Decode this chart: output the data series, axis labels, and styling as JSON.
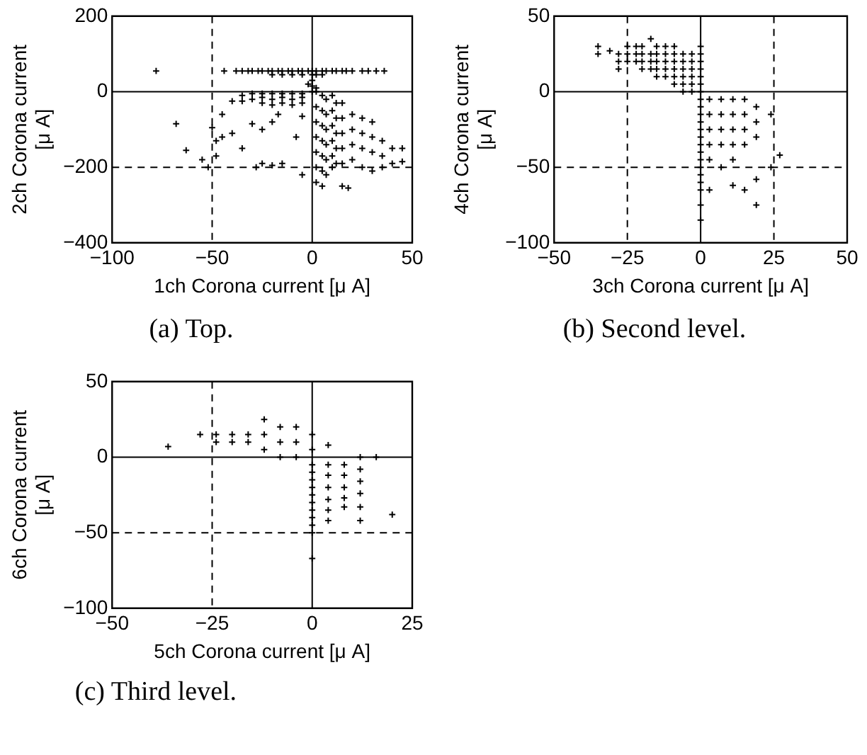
{
  "chart_data": [
    {
      "type": "scatter",
      "title": "(a) Top.",
      "xlabel": "1ch Corona current [μ A]",
      "ylabel": "2ch Corona current\n[μ A]",
      "color": "#000000",
      "marker": "cross",
      "xlim": [
        -100,
        50
      ],
      "ylim": [
        -400,
        200
      ],
      "xticks": [
        -100,
        -50,
        0,
        50
      ],
      "yticks": [
        -400,
        -200,
        0,
        200
      ],
      "ref_lines": [
        {
          "axis": "x",
          "value": 0,
          "line_style": "solid"
        },
        {
          "axis": "y",
          "value": 0,
          "line_style": "solid"
        },
        {
          "axis": "x",
          "value": -50,
          "line_style": "dashed"
        },
        {
          "axis": "y",
          "value": -200,
          "line_style": "dashed"
        }
      ],
      "x": [
        -78,
        -44,
        -38,
        -35,
        -32,
        -30,
        -27,
        -25,
        -22,
        -20,
        -17,
        -15,
        -12,
        -10,
        -7,
        -5,
        -2,
        0,
        2,
        5,
        7,
        10,
        12,
        15,
        17,
        20,
        25,
        28,
        32,
        36,
        -20,
        -15,
        -10,
        -5,
        0,
        2,
        5,
        0,
        0,
        0,
        -2,
        2,
        -35,
        -35,
        -30,
        -30,
        -25,
        -25,
        -25,
        -20,
        -20,
        -20,
        -15,
        -15,
        -15,
        -10,
        -10,
        -10,
        -5,
        -5,
        -5,
        -40,
        2,
        2,
        2,
        2,
        2,
        2,
        2,
        5,
        5,
        5,
        5,
        5,
        5,
        5,
        7,
        7,
        7,
        7,
        7,
        7,
        10,
        10,
        10,
        10,
        10,
        10,
        12,
        12,
        12,
        12,
        12,
        15,
        15,
        15,
        15,
        15,
        15,
        20,
        20,
        20,
        20,
        25,
        25,
        25,
        25,
        30,
        30,
        30,
        30,
        35,
        35,
        35,
        40,
        40,
        45,
        45,
        -68,
        -63,
        -55,
        -52,
        -50,
        -48,
        -48,
        -45,
        -45,
        -40,
        -35,
        -30,
        -28,
        -25,
        -20,
        -17,
        -20,
        -15,
        -8,
        -5,
        -5,
        -25,
        18
      ],
      "values": [
        55,
        55,
        55,
        55,
        55,
        55,
        55,
        55,
        55,
        55,
        55,
        55,
        55,
        55,
        55,
        55,
        55,
        55,
        55,
        55,
        55,
        55,
        55,
        55,
        55,
        55,
        55,
        55,
        55,
        55,
        45,
        45,
        45,
        45,
        45,
        45,
        45,
        30,
        15,
        0,
        20,
        10,
        -10,
        -25,
        -5,
        -20,
        -5,
        -15,
        -30,
        -5,
        -20,
        -35,
        -5,
        -15,
        -30,
        -5,
        -20,
        -35,
        -5,
        -15,
        -30,
        -25,
        0,
        -40,
        -80,
        -120,
        -160,
        -200,
        -240,
        -10,
        -50,
        -90,
        -130,
        -170,
        -210,
        -250,
        -20,
        -60,
        -100,
        -140,
        -180,
        -220,
        -10,
        -50,
        -90,
        -130,
        -170,
        -200,
        -30,
        -70,
        -110,
        -150,
        -190,
        -30,
        -70,
        -110,
        -150,
        -190,
        -250,
        -60,
        -100,
        -140,
        -180,
        -70,
        -110,
        -150,
        -200,
        -80,
        -120,
        -160,
        -210,
        -130,
        -170,
        -200,
        -150,
        -190,
        -150,
        -185,
        -85,
        -155,
        -180,
        -200,
        -95,
        -130,
        -170,
        -60,
        -120,
        -110,
        -150,
        -85,
        -200,
        -100,
        -80,
        -60,
        -195,
        -190,
        -120,
        -220,
        -65,
        -190,
        -255
      ]
    },
    {
      "type": "scatter",
      "title": "(b) Second level.",
      "xlabel": "3ch Corona current [μ A]",
      "ylabel": "4ch Corona current\n[μ A]",
      "color": "#000000",
      "marker": "cross",
      "xlim": [
        -50,
        50
      ],
      "ylim": [
        -100,
        50
      ],
      "xticks": [
        -50,
        -25,
        0,
        25,
        50
      ],
      "yticks": [
        -100,
        -50,
        0,
        50
      ],
      "ref_lines": [
        {
          "axis": "x",
          "value": 0,
          "line_style": "solid"
        },
        {
          "axis": "y",
          "value": 0,
          "line_style": "solid"
        },
        {
          "axis": "x",
          "value": -25,
          "line_style": "dashed"
        },
        {
          "axis": "x",
          "value": 25,
          "line_style": "dashed"
        },
        {
          "axis": "y",
          "value": -50,
          "line_style": "dashed"
        }
      ],
      "x": [
        -35,
        -35,
        -31,
        -28,
        -28,
        -28,
        -25,
        -25,
        -25,
        -22,
        -22,
        -22,
        -20,
        -20,
        -20,
        -20,
        -17,
        -17,
        -17,
        -17,
        -15,
        -15,
        -15,
        -15,
        -15,
        -12,
        -12,
        -12,
        -12,
        -12,
        -9,
        -9,
        -9,
        -9,
        -9,
        -9,
        -6,
        -6,
        -6,
        -6,
        -6,
        -6,
        -3,
        -3,
        -3,
        -3,
        -3,
        -3,
        0,
        0,
        0,
        0,
        0,
        0,
        0,
        0,
        0,
        0,
        0,
        0,
        0,
        0,
        0,
        0,
        0,
        0,
        0,
        0,
        0,
        0,
        3,
        3,
        3,
        3,
        3,
        3,
        7,
        7,
        7,
        7,
        7,
        11,
        11,
        11,
        11,
        11,
        11,
        15,
        15,
        15,
        15,
        15,
        19,
        19,
        19,
        19,
        19,
        24,
        24,
        27
      ],
      "values": [
        25,
        30,
        27,
        15,
        20,
        25,
        20,
        25,
        30,
        20,
        25,
        30,
        15,
        20,
        25,
        30,
        15,
        20,
        25,
        35,
        10,
        15,
        20,
        25,
        30,
        10,
        15,
        20,
        25,
        30,
        5,
        10,
        15,
        20,
        25,
        30,
        0,
        5,
        10,
        15,
        20,
        25,
        0,
        5,
        10,
        15,
        20,
        25,
        0,
        5,
        10,
        15,
        20,
        25,
        30,
        -5,
        -10,
        -15,
        -20,
        -25,
        -30,
        -35,
        -40,
        -45,
        -50,
        -55,
        -60,
        -65,
        -75,
        -85,
        -5,
        -15,
        -25,
        -35,
        -45,
        -65,
        -5,
        -15,
        -25,
        -35,
        -50,
        -5,
        -15,
        -25,
        -35,
        -45,
        -62,
        -5,
        -15,
        -25,
        -35,
        -65,
        -10,
        -20,
        -30,
        -58,
        -75,
        -15,
        -50,
        -42
      ]
    },
    {
      "type": "scatter",
      "title": "(c) Third level.",
      "xlabel": "5ch Corona current [μ A]",
      "ylabel": "6ch Corona current\n[μ A]",
      "color": "#000000",
      "marker": "cross",
      "xlim": [
        -50,
        25
      ],
      "ylim": [
        -100,
        50
      ],
      "xticks": [
        -50,
        -25,
        0,
        25
      ],
      "yticks": [
        -100,
        -50,
        0,
        50
      ],
      "ref_lines": [
        {
          "axis": "x",
          "value": 0,
          "line_style": "solid"
        },
        {
          "axis": "y",
          "value": 0,
          "line_style": "solid"
        },
        {
          "axis": "x",
          "value": -25,
          "line_style": "dashed"
        },
        {
          "axis": "y",
          "value": -50,
          "line_style": "dashed"
        }
      ],
      "x": [
        -36,
        -28,
        -24,
        -24,
        -20,
        -20,
        -16,
        -16,
        -12,
        -12,
        -12,
        -8,
        -8,
        -8,
        -4,
        -4,
        -4,
        0,
        0,
        0,
        0,
        0,
        0,
        0,
        0,
        0,
        0,
        0,
        0,
        0,
        4,
        4,
        4,
        4,
        4,
        4,
        4,
        8,
        8,
        8,
        8,
        8,
        12,
        12,
        12,
        12,
        12,
        12,
        16,
        20
      ],
      "values": [
        7,
        15,
        15,
        10,
        15,
        10,
        15,
        10,
        25,
        15,
        5,
        20,
        10,
        0,
        20,
        10,
        0,
        15,
        5,
        -5,
        -10,
        -15,
        -20,
        -25,
        -30,
        -35,
        -40,
        -45,
        -50,
        -67,
        8,
        -5,
        -12,
        -20,
        -28,
        -35,
        -42,
        -5,
        -12,
        -20,
        -27,
        -33,
        0,
        -8,
        -16,
        -24,
        -33,
        -42,
        0,
        -38
      ]
    }
  ]
}
